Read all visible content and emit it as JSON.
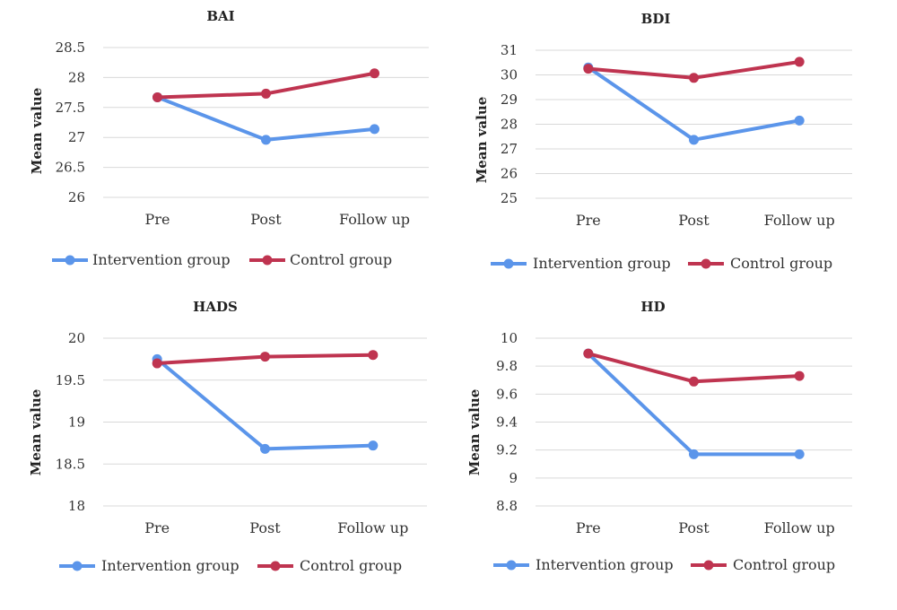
{
  "colors": {
    "intervention": "#5b95ea",
    "control": "#bf3450",
    "grid": "#d9d9d9"
  },
  "chart_data": [
    {
      "type": "line",
      "title": "BAI",
      "ylabel": "Mean value",
      "categories": [
        "Pre",
        "Post",
        "Follow up"
      ],
      "ylim": [
        26,
        28.5
      ],
      "yticks": [
        "26",
        "26.5",
        "27",
        "27.5",
        "28",
        "28.5"
      ],
      "grid": true,
      "legend": "bottom",
      "series": [
        {
          "name": "Intervention group",
          "values": [
            27.67,
            26.96,
            27.14
          ]
        },
        {
          "name": "Control group",
          "values": [
            27.67,
            27.73,
            28.07
          ]
        }
      ]
    },
    {
      "type": "line",
      "title": "BDI",
      "ylabel": "Mean value",
      "categories": [
        "Pre",
        "Post",
        "Follow up"
      ],
      "ylim": [
        25,
        31
      ],
      "yticks": [
        "25",
        "26",
        "27",
        "28",
        "29",
        "30",
        "31"
      ],
      "grid": true,
      "legend": "bottom",
      "series": [
        {
          "name": "Intervention group",
          "values": [
            30.3,
            27.37,
            28.15
          ]
        },
        {
          "name": "Control group",
          "values": [
            30.25,
            29.88,
            30.53
          ]
        }
      ]
    },
    {
      "type": "line",
      "title": "HADS",
      "ylabel": "Mean value",
      "categories": [
        "Pre",
        "Post",
        "Follow up"
      ],
      "ylim": [
        18,
        20
      ],
      "yticks": [
        "18",
        "18.5",
        "19",
        "19.5",
        "20"
      ],
      "grid": true,
      "legend": "bottom",
      "series": [
        {
          "name": "Intervention group",
          "values": [
            19.75,
            18.68,
            18.72
          ]
        },
        {
          "name": "Control group",
          "values": [
            19.7,
            19.78,
            19.8
          ]
        }
      ]
    },
    {
      "type": "line",
      "title": "HD",
      "ylabel": "Mean value",
      "categories": [
        "Pre",
        "Post",
        "Follow up"
      ],
      "ylim": [
        8.8,
        10
      ],
      "yticks": [
        "8.8",
        "9",
        "9.2",
        "9.4",
        "9.6",
        "9.8",
        "10"
      ],
      "grid": true,
      "legend": "bottom",
      "series": [
        {
          "name": "Intervention group",
          "values": [
            9.89,
            9.17,
            9.17
          ]
        },
        {
          "name": "Control group",
          "values": [
            9.89,
            9.69,
            9.73
          ]
        }
      ]
    }
  ]
}
